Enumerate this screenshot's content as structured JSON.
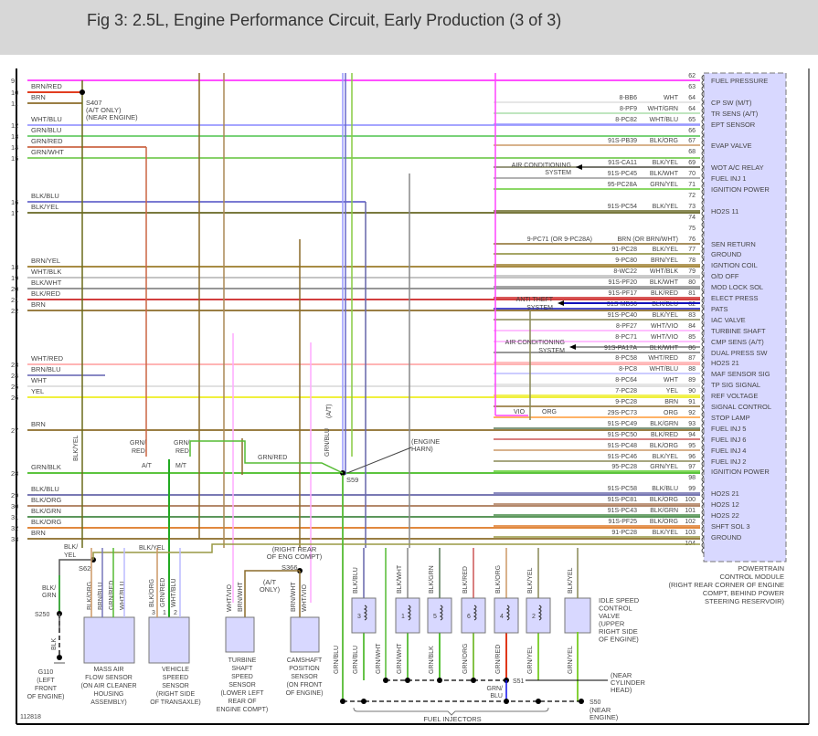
{
  "header": {
    "title": "Fig 3: 2.5L, Engine Performance Circuit, Early Production (3 of 3)"
  },
  "figure_id": "112818",
  "left_pins": [
    {
      "pin": "9",
      "color": "",
      "wire": "#ff44ff"
    },
    {
      "pin": "10",
      "color": "BRN/RED",
      "wire": "#dd2200"
    },
    {
      "pin": "11",
      "color": "BRN",
      "wire": "#8b6b2a"
    },
    {
      "pin": "12",
      "color": "WHT/BLU",
      "wire": "#9999ff"
    },
    {
      "pin": "13",
      "color": "GRN/BLU",
      "wire": "#66cc66"
    },
    {
      "pin": "14",
      "color": "GRN/RED",
      "wire": "#cc6644"
    },
    {
      "pin": "15",
      "color": "GRN/WHT",
      "wire": "#77cc55"
    },
    {
      "pin": "16",
      "color": "BLK/BLU",
      "wire": "#6666cc"
    },
    {
      "pin": "17",
      "color": "BLK/YEL",
      "wire": "#666622"
    },
    {
      "pin": "18",
      "color": "BRN/YEL",
      "wire": "#9b7b2a"
    },
    {
      "pin": "19",
      "color": "WHT/BLK",
      "wire": "#bbbbbb"
    },
    {
      "pin": "20",
      "color": "BLK/WHT",
      "wire": "#888888"
    },
    {
      "pin": "21",
      "color": "BLK/RED",
      "wire": "#cc2222"
    },
    {
      "pin": "22",
      "color": "BRN",
      "wire": "#8b6b2a"
    },
    {
      "pin": "23",
      "color": "WHT/RED",
      "wire": "#ffaaaa"
    },
    {
      "pin": "24",
      "color": "BRN/BLU",
      "wire": "#7777bb"
    },
    {
      "pin": "25",
      "color": "WHT",
      "wire": "#dddddd"
    },
    {
      "pin": "26",
      "color": "YEL",
      "wire": "#eeee22"
    },
    {
      "pin": "27",
      "color": "BRN",
      "wire": "#8b6b2a"
    },
    {
      "pin": "28",
      "color": "GRN/BLK",
      "wire": "#44bb22"
    },
    {
      "pin": "29",
      "color": "BLK/BLU",
      "wire": "#6666aa"
    },
    {
      "pin": "30",
      "color": "BLK/ORG",
      "wire": "#aa7755"
    },
    {
      "pin": "31",
      "color": "BLK/GRN",
      "wire": "#448844"
    },
    {
      "pin": "32",
      "color": "BLK/ORG",
      "wire": "#dd7722"
    },
    {
      "pin": "33",
      "color": "BRN",
      "wire": "#8b6b2a"
    }
  ],
  "right_pins": [
    {
      "pin": "62",
      "circuit": "",
      "color": "",
      "func": "FUEL PRESSURE",
      "wire": "#ff44ff"
    },
    {
      "pin": "63",
      "circuit": "",
      "color": "",
      "func": "",
      "wire": ""
    },
    {
      "pin": "64",
      "circuit": "8-BB6",
      "color": "WHT",
      "func": "CP SW (M/T)",
      "wire": "#dddddd"
    },
    {
      "pin": "64",
      "circuit": "8-PF9",
      "color": "WHT/GRN",
      "func": "TR SENS (A/T)",
      "wire": "#aaddaa"
    },
    {
      "pin": "65",
      "circuit": "8-PC82",
      "color": "WHT/BLU",
      "func": "EPT SENSOR",
      "wire": "#9999ff"
    },
    {
      "pin": "66",
      "circuit": "",
      "color": "",
      "func": "",
      "wire": ""
    },
    {
      "pin": "67",
      "circuit": "91S-PB39",
      "color": "BLK/ORG",
      "func": "EVAP VALVE",
      "wire": "#cc9966"
    },
    {
      "pin": "68",
      "circuit": "",
      "color": "",
      "func": "",
      "wire": ""
    },
    {
      "pin": "69",
      "circuit": "91S-CA11",
      "color": "BLK/YEL",
      "func": "WOT A/C RELAY",
      "wire": "#777755"
    },
    {
      "pin": "70",
      "circuit": "91S-PC45",
      "color": "BLK/WHT",
      "func": "FUEL INJ 1",
      "wire": "#999999"
    },
    {
      "pin": "71",
      "circuit": "95-PC28A",
      "color": "GRN/YEL",
      "func": "IGNITION POWER",
      "wire": "#66cc33"
    },
    {
      "pin": "72",
      "circuit": "",
      "color": "",
      "func": "",
      "wire": ""
    },
    {
      "pin": "73",
      "circuit": "91S-PC54",
      "color": "BLK/YEL",
      "func": "HO2S 11",
      "wire": "#666622"
    },
    {
      "pin": "74",
      "circuit": "",
      "color": "",
      "func": "",
      "wire": ""
    },
    {
      "pin": "75",
      "circuit": "",
      "color": "",
      "func": "",
      "wire": ""
    },
    {
      "pin": "76",
      "circuit": "9-PC71 (OR 9-PC28A)",
      "color": "BRN (OR BRN/WHT)",
      "func": "SEN RETURN",
      "wire": "#8b6b2a"
    },
    {
      "pin": "77",
      "circuit": "91-PC28",
      "color": "BLK/YEL",
      "func": "GROUND",
      "wire": "#888833"
    },
    {
      "pin": "78",
      "circuit": "9-PC80",
      "color": "BRN/YEL",
      "func": "IGNTION COIL",
      "wire": "#9b7b2a"
    },
    {
      "pin": "79",
      "circuit": "8-WC22",
      "color": "WHT/BLK",
      "func": "O/D OFF",
      "wire": "#bbbbbb"
    },
    {
      "pin": "80",
      "circuit": "91S-PF20",
      "color": "BLK/WHT",
      "func": "MOD LOCK SOL",
      "wire": "#888888"
    },
    {
      "pin": "81",
      "circuit": "91S-PF17",
      "color": "BLK/RED",
      "func": "ELECT PRESS",
      "wire": "#cc2222"
    },
    {
      "pin": "82",
      "circuit": "31S-MB36",
      "color": "BLK/BLU",
      "func": "PATS",
      "wire": "#1111bb"
    },
    {
      "pin": "83",
      "circuit": "91S-PC40",
      "color": "BLK/YEL",
      "func": "IAC VALVE",
      "wire": "#888855"
    },
    {
      "pin": "84",
      "circuit": "8-PF27",
      "color": "WHT/VIO",
      "func": "TURBINE SHAFT",
      "wire": "#ffaaff"
    },
    {
      "pin": "85",
      "circuit": "8-PC71",
      "color": "WHT/VIO",
      "func": "CMP SENS (A/T)",
      "wire": "#ffaaff"
    },
    {
      "pin": "86",
      "circuit": "91S-PA17A",
      "color": "BLK/WHT",
      "func": "DUAL PRESS SW",
      "wire": "#777777"
    },
    {
      "pin": "87",
      "circuit": "8-PC58",
      "color": "WHT/RED",
      "func": "HO2S 21",
      "wire": "#ffaaaa"
    },
    {
      "pin": "88",
      "circuit": "8-PC8",
      "color": "WHT/BLU",
      "func": "MAF SENSOR SIG",
      "wire": "#bbbbff"
    },
    {
      "pin": "89",
      "circuit": "8-PC64",
      "color": "WHT",
      "func": "TP SIG SIGNAL",
      "wire": "#dddddd"
    },
    {
      "pin": "90",
      "circuit": "7-PC28",
      "color": "YEL",
      "func": "REF VOLTAGE",
      "wire": "#eeee22"
    },
    {
      "pin": "91",
      "circuit": "9-PC28",
      "color": "BRN",
      "func": "SIGNAL CONTROL",
      "wire": "#8b6b2a"
    },
    {
      "pin": "92",
      "circuit": "29S-PC73",
      "color": "ORG",
      "func": "STOP LAMP",
      "wire": "#ff9933"
    },
    {
      "pin": "93",
      "circuit": "91S-PC49",
      "color": "BLK/GRN",
      "func": "FUEL INJ 5",
      "wire": "#557755"
    },
    {
      "pin": "94",
      "circuit": "91S-PC50",
      "color": "BLK/RED",
      "func": "FUEL INJ 6",
      "wire": "#cc5555"
    },
    {
      "pin": "95",
      "circuit": "91S-PC48",
      "color": "BLK/ORG",
      "func": "FUEL INJ 4",
      "wire": "#cc9966"
    },
    {
      "pin": "96",
      "circuit": "91S-PC46",
      "color": "BLK/YEL",
      "func": "FUEL INJ 2",
      "wire": "#888855"
    },
    {
      "pin": "97",
      "circuit": "95-PC28",
      "color": "GRN/YEL",
      "func": "IGNITION POWER",
      "wire": "#55cc22"
    },
    {
      "pin": "98",
      "circuit": "",
      "color": "",
      "func": "",
      "wire": ""
    },
    {
      "pin": "99",
      "circuit": "91S-PC58",
      "color": "BLK/BLU",
      "func": "HO2S 21",
      "wire": "#6666aa"
    },
    {
      "pin": "100",
      "circuit": "91S-PC81",
      "color": "BLK/ORG",
      "func": "HO2S 12",
      "wire": "#aa7755"
    },
    {
      "pin": "101",
      "circuit": "91S-PC43",
      "color": "BLK/GRN",
      "func": "HO2S 22",
      "wire": "#448844"
    },
    {
      "pin": "102",
      "circuit": "91S-PF25",
      "color": "BLK/ORG",
      "func": "SHFT SOL 3",
      "wire": "#dd7722"
    },
    {
      "pin": "103",
      "circuit": "91-PC28",
      "color": "BLK/YEL",
      "func": "GROUND",
      "wire": "#999944"
    },
    {
      "pin": "104",
      "circuit": "",
      "color": "",
      "func": "",
      "wire": ""
    }
  ],
  "pcm": {
    "line1": "POWERTRAIN",
    "line2": "CONTROL MODULE",
    "line3": "(RIGHT REAR CORNER OF ENGINE",
    "line4": "COMPT, BEHIND POWER",
    "line5": "STEERING RESERVOIR)",
    "fill": "#d8d8ff"
  },
  "external": {
    "ac1a": "AIR CONDITIONING",
    "ac1b": "SYSTEM",
    "anti_a": "ANTI THEFT",
    "anti_b": "SYSTEM",
    "ac2a": "AIR CONDITIONING",
    "ac2b": "SYSTEM",
    "vio": "VIO",
    "org": "ORG"
  },
  "splices": {
    "s407": "S407",
    "s407_a": "(A/T ONLY)",
    "s407_b": "(NEAR ENGINE)",
    "s59": "S59",
    "eng_a": "(ENGINE",
    "eng_b": "HARN)",
    "at_label": "(A/T)",
    "grnblu": "GRN/BLU",
    "grnred_a1": "GRN/",
    "grnred_a2": "RED",
    "at": "A/T",
    "grnred_b1": "GRN/",
    "grnred_b2": "RED",
    "mt": "M/T",
    "grnred_h": "GRN/RED",
    "blkyel_v": "BLK/YEL",
    "s62": "S62",
    "blk_yel1": "BLK/",
    "blk_yel2": "YEL",
    "blkyel_h": "BLK/YEL",
    "s250": "S250",
    "blk_grn1": "BLK/",
    "blk_grn2": "GRN",
    "blk": "BLK",
    "s366": "S366",
    "s366_a": "(RIGHT REAR",
    "s366_b": "OF ENG COMPT)",
    "s366_c": "(A/T",
    "s366_d": "ONLY)",
    "s51": "S51",
    "s51_a": "(NEAR",
    "s51_b": "CYLINDER",
    "s51_c": "HEAD)",
    "grnblu_a": "GRN/",
    "grnblu_b": "BLU",
    "s50": "S50",
    "s50_a": "(NEAR",
    "s50_b": "ENGINE)",
    "fuel_injectors": "FUEL INJECTORS"
  },
  "components": {
    "g110": [
      "G110",
      "(LEFT",
      "FRONT",
      "OF ENGINE)"
    ],
    "maf": {
      "label": [
        "MASS AIR",
        "FLOW SENSOR",
        "(ON AIR CLEANER",
        "HOUSING",
        "ASSEMBLY)"
      ],
      "wires": [
        "BLK/ORG",
        "BRN/BLU",
        "GRN/RED",
        "WHT/BLU"
      ]
    },
    "vss": {
      "label": [
        "VEHICLE",
        "SPEEED",
        "SENSOR",
        "(RIGHT SIDE",
        "OF TRANSAXLE)"
      ],
      "wires": [
        "BLK/ORG",
        "GRN/RED",
        "WHT/BLU"
      ],
      "pins": [
        "3",
        "1",
        "2"
      ]
    },
    "tss": {
      "label": [
        "TURBINE",
        "SHAFT",
        "SPEED",
        "SENSOR",
        "(LOWER LEFT",
        "REAR OF",
        "ENGINE COMPT)"
      ],
      "wires": [
        "WHT/VIO",
        "BRN/WHT"
      ]
    },
    "cmp": {
      "label": [
        "CAMSHAFT",
        "POSITION",
        "SENSOR",
        "(ON FRONT",
        "OF ENGINE)"
      ],
      "wires": [
        "BRN/WHT",
        "WHT/VIO"
      ]
    },
    "iac": {
      "label": [
        "IDLE SPEED",
        "CONTROL",
        "VALVE",
        "(UPPER",
        "RIGHT SIDE",
        "OF ENGINE)"
      ],
      "top": "BLK/YEL",
      "bottom": "GRN/YEL"
    },
    "injectors": [
      {
        "num": "3",
        "top": "BLK/BLU",
        "bottom": "GRN/BLU",
        "wt": "#6666aa",
        "wb": "#55bb33"
      },
      {
        "num": "1",
        "top": "BLK/WHT",
        "bottom": "GRN/WHT",
        "wt": "#888888",
        "wb": "#55bb33"
      },
      {
        "num": "5",
        "top": "BLK/GRN",
        "bottom": "GRN/BLK",
        "wt": "#557755",
        "wb": "#44bb22"
      },
      {
        "num": "6",
        "top": "BLK/RED",
        "bottom": "GRN/ORG",
        "wt": "#cc5555",
        "wb": "#77bb33"
      },
      {
        "num": "4",
        "top": "BLK/ORG",
        "bottom": "GRN/RED",
        "wt": "#cc9966",
        "wb": "#dd2200"
      },
      {
        "num": "2",
        "top": "BLK/YEL",
        "bottom": "GRN/YEL",
        "wt": "#888855",
        "wb": "#77cc22"
      }
    ],
    "extra_grnblu": "GRN/BLU",
    "extra_grnwht": "GRN/WHT"
  }
}
